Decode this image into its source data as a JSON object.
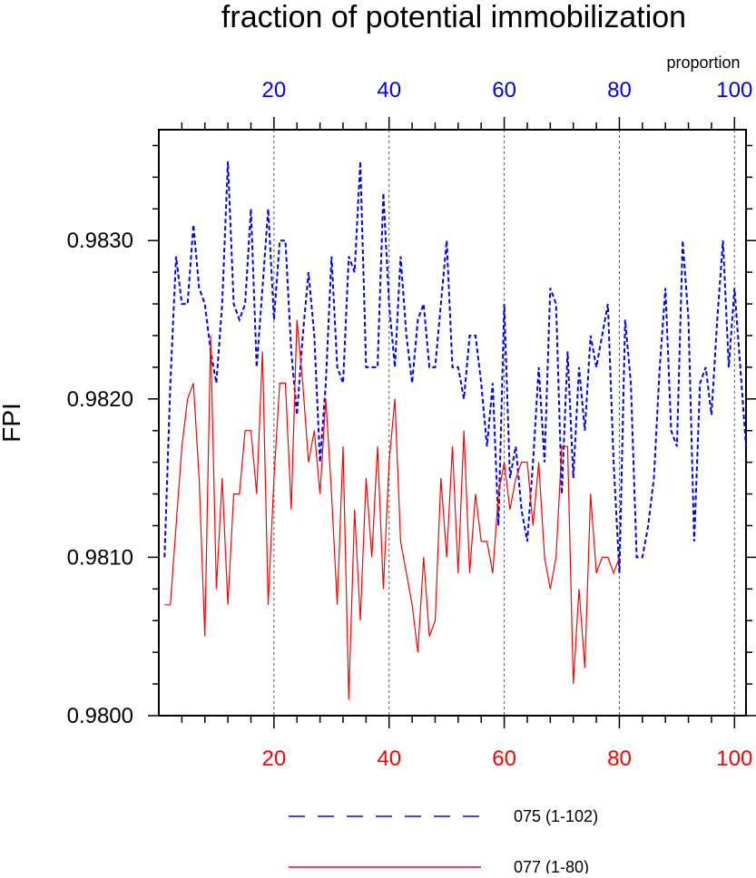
{
  "chart_data": {
    "type": "line",
    "title": "fraction of potential immobilization",
    "ylabel": "FPI",
    "top_axis_label": "proportion",
    "ylim": [
      0.98,
      0.9837
    ],
    "yticks": [
      "0.9800",
      "0.9810",
      "0.9820",
      "0.9830"
    ],
    "ytick_values": [
      0.98,
      0.981,
      0.982,
      0.983
    ],
    "top_axis": {
      "xlim": [
        0,
        102
      ],
      "ticks": [
        20,
        40,
        60,
        80,
        100
      ],
      "tick_labels": [
        "20",
        "40",
        "60",
        "80",
        "100"
      ],
      "color": "#0000ff"
    },
    "bottom_axis": {
      "xlim": [
        0,
        102
      ],
      "ticks": [
        20,
        40,
        60,
        80,
        100
      ],
      "tick_labels": [
        "20",
        "40",
        "60",
        "80",
        "100"
      ],
      "color": "#ff0000"
    },
    "vertical_gridlines_at": [
      20,
      40,
      60,
      80,
      100
    ],
    "series": [
      {
        "name": "075 (1-102)",
        "color": "#0000ff",
        "dash": "dashed",
        "axis": "top",
        "x": [
          1,
          2,
          3,
          4,
          5,
          6,
          7,
          8,
          9,
          10,
          11,
          12,
          13,
          14,
          15,
          16,
          17,
          18,
          19,
          20,
          21,
          22,
          23,
          24,
          25,
          26,
          27,
          28,
          29,
          30,
          31,
          32,
          33,
          34,
          35,
          36,
          37,
          38,
          39,
          40,
          41,
          42,
          43,
          44,
          45,
          46,
          47,
          48,
          49,
          50,
          51,
          52,
          53,
          54,
          55,
          56,
          57,
          58,
          59,
          60,
          61,
          62,
          63,
          64,
          65,
          66,
          67,
          68,
          69,
          70,
          71,
          72,
          73,
          74,
          75,
          76,
          77,
          78,
          79,
          80,
          81,
          82,
          83,
          84,
          85,
          86,
          87,
          88,
          89,
          90,
          91,
          92,
          93,
          94,
          95,
          96,
          97,
          98,
          99,
          100,
          101,
          102
        ],
        "values": [
          0.981,
          0.9821,
          0.9829,
          0.9826,
          0.9826,
          0.9831,
          0.9827,
          0.9826,
          0.9823,
          0.9821,
          0.9826,
          0.9835,
          0.9826,
          0.9825,
          0.9826,
          0.9832,
          0.9822,
          0.9827,
          0.9832,
          0.9825,
          0.983,
          0.983,
          0.9823,
          0.9819,
          0.9824,
          0.9828,
          0.9824,
          0.9816,
          0.9821,
          0.9829,
          0.9822,
          0.9821,
          0.9829,
          0.9828,
          0.9835,
          0.9822,
          0.9822,
          0.9822,
          0.9833,
          0.9826,
          0.9822,
          0.9829,
          0.9824,
          0.9821,
          0.9825,
          0.9826,
          0.9822,
          0.9822,
          0.9826,
          0.983,
          0.9822,
          0.9822,
          0.982,
          0.9824,
          0.9824,
          0.9821,
          0.9817,
          0.9821,
          0.9812,
          0.9826,
          0.9815,
          0.9817,
          0.9813,
          0.9811,
          0.9816,
          0.9822,
          0.9816,
          0.9827,
          0.9826,
          0.9814,
          0.9823,
          0.9815,
          0.9822,
          0.9818,
          0.9824,
          0.9822,
          0.9824,
          0.9826,
          0.9816,
          0.9809,
          0.9825,
          0.9821,
          0.981,
          0.981,
          0.9812,
          0.9815,
          0.9822,
          0.9827,
          0.9818,
          0.9817,
          0.983,
          0.9825,
          0.9811,
          0.9821,
          0.9822,
          0.9819,
          0.9825,
          0.983,
          0.9822,
          0.9827,
          0.9822,
          0.9817
        ]
      },
      {
        "name": "077 (1-80)",
        "color": "#ff0000",
        "dash": "solid",
        "axis": "bottom",
        "x": [
          1,
          2,
          3,
          4,
          5,
          6,
          7,
          8,
          9,
          10,
          11,
          12,
          13,
          14,
          15,
          16,
          17,
          18,
          19,
          20,
          21,
          22,
          23,
          24,
          25,
          26,
          27,
          28,
          29,
          30,
          31,
          32,
          33,
          34,
          35,
          36,
          37,
          38,
          39,
          40,
          41,
          42,
          43,
          44,
          45,
          46,
          47,
          48,
          49,
          50,
          51,
          52,
          53,
          54,
          55,
          56,
          57,
          58,
          59,
          60,
          61,
          62,
          63,
          64,
          65,
          66,
          67,
          68,
          69,
          70,
          71,
          72,
          73,
          74,
          75,
          76,
          77,
          78,
          79,
          80
        ],
        "values": [
          0.9807,
          0.9807,
          0.9812,
          0.9817,
          0.982,
          0.9821,
          0.9815,
          0.9805,
          0.9824,
          0.9808,
          0.9815,
          0.9807,
          0.9814,
          0.9814,
          0.9818,
          0.9818,
          0.9814,
          0.9823,
          0.9807,
          0.9815,
          0.9821,
          0.9821,
          0.9813,
          0.9825,
          0.9821,
          0.9816,
          0.9818,
          0.9814,
          0.982,
          0.9814,
          0.9807,
          0.9817,
          0.9801,
          0.9813,
          0.9806,
          0.9815,
          0.981,
          0.9817,
          0.9808,
          0.9816,
          0.982,
          0.9811,
          0.9809,
          0.9807,
          0.9804,
          0.981,
          0.9805,
          0.9806,
          0.9815,
          0.981,
          0.9817,
          0.9809,
          0.9818,
          0.9809,
          0.9814,
          0.9811,
          0.9811,
          0.9809,
          0.9814,
          0.9816,
          0.9813,
          0.9815,
          0.9816,
          0.9816,
          0.9812,
          0.9816,
          0.981,
          0.9808,
          0.981,
          0.9817,
          0.9817,
          0.9802,
          0.9808,
          0.9803,
          0.9814,
          0.9809,
          0.981,
          0.981,
          0.9809,
          0.981
        ]
      }
    ],
    "legend_position": "bottom-center"
  }
}
